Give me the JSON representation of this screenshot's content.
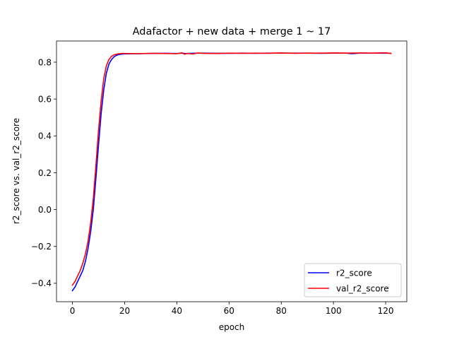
{
  "chart_data": {
    "type": "line",
    "title": "Adafactor + new data + merge 1 ~ 17",
    "xlabel": "epoch",
    "ylabel": "r2_score vs. val_r2_score",
    "xlim": [
      -6.1,
      128.1
    ],
    "ylim": [
      -0.5,
      0.915
    ],
    "xticks": [
      0,
      20,
      40,
      60,
      80,
      100,
      120
    ],
    "yticks": [
      -0.4,
      -0.2,
      0.0,
      0.2,
      0.4,
      0.6,
      0.8
    ],
    "xtick_labels": [
      "0",
      "20",
      "40",
      "60",
      "80",
      "100",
      "120"
    ],
    "ytick_labels": [
      "−0.4",
      "−0.2",
      "0.0",
      "0.2",
      "0.4",
      "0.6",
      "0.8"
    ],
    "grid": false,
    "legend_position": "lower-right",
    "series": [
      {
        "name": "r2_score",
        "color": "#0000ff",
        "points": [
          [
            0,
            -0.44
          ],
          [
            1,
            -0.42
          ],
          [
            2,
            -0.39
          ],
          [
            3,
            -0.36
          ],
          [
            4,
            -0.33
          ],
          [
            5,
            -0.28
          ],
          [
            6,
            -0.21
          ],
          [
            7,
            -0.12
          ],
          [
            8,
            0.0
          ],
          [
            9,
            0.17
          ],
          [
            10,
            0.35
          ],
          [
            11,
            0.52
          ],
          [
            12,
            0.65
          ],
          [
            13,
            0.74
          ],
          [
            14,
            0.79
          ],
          [
            15,
            0.815
          ],
          [
            16,
            0.83
          ],
          [
            17,
            0.838
          ],
          [
            18,
            0.842
          ],
          [
            19,
            0.844
          ],
          [
            20,
            0.845
          ],
          [
            25,
            0.846
          ],
          [
            30,
            0.847
          ],
          [
            35,
            0.848
          ],
          [
            40,
            0.847
          ],
          [
            42,
            0.849
          ],
          [
            44,
            0.846
          ],
          [
            45,
            0.848
          ],
          [
            50,
            0.849
          ],
          [
            55,
            0.848
          ],
          [
            60,
            0.848
          ],
          [
            65,
            0.849
          ],
          [
            70,
            0.848
          ],
          [
            75,
            0.849
          ],
          [
            80,
            0.849
          ],
          [
            85,
            0.849
          ],
          [
            90,
            0.849
          ],
          [
            95,
            0.848
          ],
          [
            100,
            0.849
          ],
          [
            105,
            0.849
          ],
          [
            107,
            0.846
          ],
          [
            110,
            0.849
          ],
          [
            115,
            0.849
          ],
          [
            120,
            0.849
          ],
          [
            122,
            0.848
          ]
        ]
      },
      {
        "name": "val_r2_score",
        "color": "#ff0000",
        "points": [
          [
            0,
            -0.41
          ],
          [
            1,
            -0.39
          ],
          [
            2,
            -0.36
          ],
          [
            3,
            -0.33
          ],
          [
            4,
            -0.29
          ],
          [
            5,
            -0.24
          ],
          [
            6,
            -0.17
          ],
          [
            7,
            -0.07
          ],
          [
            8,
            0.06
          ],
          [
            9,
            0.24
          ],
          [
            10,
            0.43
          ],
          [
            11,
            0.59
          ],
          [
            12,
            0.71
          ],
          [
            13,
            0.78
          ],
          [
            14,
            0.815
          ],
          [
            15,
            0.832
          ],
          [
            16,
            0.84
          ],
          [
            17,
            0.844
          ],
          [
            18,
            0.846
          ],
          [
            19,
            0.847
          ],
          [
            20,
            0.847
          ],
          [
            25,
            0.846
          ],
          [
            30,
            0.848
          ],
          [
            35,
            0.847
          ],
          [
            40,
            0.846
          ],
          [
            42,
            0.851
          ],
          [
            43,
            0.843
          ],
          [
            44,
            0.848
          ],
          [
            46,
            0.844
          ],
          [
            48,
            0.85
          ],
          [
            50,
            0.848
          ],
          [
            55,
            0.847
          ],
          [
            60,
            0.849
          ],
          [
            65,
            0.848
          ],
          [
            70,
            0.849
          ],
          [
            75,
            0.848
          ],
          [
            80,
            0.85
          ],
          [
            85,
            0.848
          ],
          [
            90,
            0.849
          ],
          [
            95,
            0.849
          ],
          [
            100,
            0.85
          ],
          [
            105,
            0.849
          ],
          [
            110,
            0.85
          ],
          [
            115,
            0.849
          ],
          [
            120,
            0.851
          ],
          [
            122,
            0.847
          ]
        ]
      }
    ]
  }
}
